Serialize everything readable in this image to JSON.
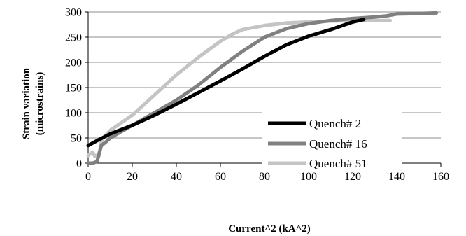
{
  "chart_data": {
    "type": "line",
    "title": "",
    "xlabel": "Current^2 (kA^2)",
    "ylabel_line1": "Strain variation",
    "ylabel_line2": "(microstrains)",
    "xlim": [
      0,
      160
    ],
    "ylim": [
      0,
      300
    ],
    "x_ticks": [
      "0",
      "20",
      "40",
      "60",
      "80",
      "100",
      "120",
      "140",
      "160"
    ],
    "y_ticks": [
      "0",
      "50",
      "100",
      "150",
      "200",
      "250",
      "300"
    ],
    "grid": "horizontal",
    "legend_position": "lower-right",
    "series": [
      {
        "name": "Quench# 2",
        "color": "#000000",
        "x": [
          0,
          5,
          10,
          20,
          30,
          40,
          50,
          60,
          70,
          80,
          90,
          100,
          110,
          120,
          125
        ],
        "y": [
          35,
          47,
          58,
          75,
          95,
          117,
          140,
          163,
          187,
          212,
          235,
          252,
          265,
          280,
          285
        ]
      },
      {
        "name": "Quench# 16",
        "color": "#808080",
        "x": [
          0,
          2,
          4,
          5,
          6,
          8,
          10,
          20,
          30,
          40,
          50,
          60,
          70,
          80,
          90,
          100,
          110,
          120,
          130,
          135,
          140,
          150,
          158
        ],
        "y": [
          0,
          0,
          3,
          20,
          35,
          42,
          50,
          75,
          100,
          125,
          155,
          190,
          222,
          250,
          267,
          277,
          283,
          287,
          290,
          292,
          296,
          297,
          298
        ]
      },
      {
        "name": "Quench# 51",
        "color": "#c4c4c4",
        "x": [
          0,
          2,
          3,
          5,
          6,
          8,
          10,
          20,
          30,
          40,
          50,
          60,
          65,
          70,
          80,
          90,
          100,
          110,
          120,
          130,
          137
        ],
        "y": [
          15,
          22,
          14,
          15,
          45,
          55,
          65,
          95,
          135,
          175,
          210,
          242,
          255,
          265,
          273,
          278,
          280,
          282,
          283,
          283,
          283
        ]
      }
    ]
  }
}
